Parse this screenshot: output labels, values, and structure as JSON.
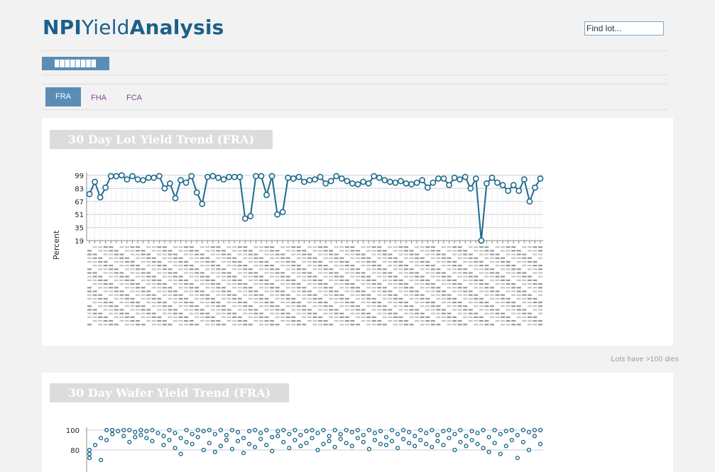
{
  "header": {
    "brand_part1": "NPI",
    "brand_part2": "Yield",
    "brand_part3": "Analysis",
    "search_placeholder": "Find lot..."
  },
  "user_badge": "████████",
  "tabs": [
    {
      "label": "FRA",
      "active": true
    },
    {
      "label": "FHA",
      "active": false
    },
    {
      "label": "FCA",
      "active": false
    }
  ],
  "lot_panel": {
    "title": "30 Day Lot Yield Trend (FRA)",
    "chart_data": {
      "type": "line",
      "title": "30 Day Lot Yield Trend (FRA)",
      "ylabel": "Percent",
      "yticks": [
        99,
        83,
        67,
        51,
        35,
        19
      ],
      "ylim": [
        19,
        99
      ],
      "grid": true,
      "color": "#1e6a8c",
      "values": [
        76,
        91,
        72,
        84,
        98,
        98,
        99,
        94,
        98,
        94,
        93,
        96,
        96,
        98,
        83,
        89,
        71,
        93,
        90,
        98,
        78,
        64,
        97,
        98,
        96,
        94,
        97,
        97,
        97,
        46,
        49,
        98,
        98,
        75,
        98,
        51,
        54,
        96,
        95,
        97,
        91,
        93,
        94,
        97,
        89,
        92,
        98,
        95,
        92,
        89,
        88,
        91,
        89,
        98,
        96,
        93,
        91,
        90,
        92,
        89,
        88,
        90,
        93,
        84,
        90,
        95,
        95,
        87,
        96,
        94,
        97,
        83,
        95,
        19,
        89,
        96,
        90,
        87,
        80,
        87,
        80,
        94,
        67,
        84,
        95
      ]
    },
    "x_labels_note": "",
    "footnote": "Lots have >100 dies"
  },
  "wafer_panel": {
    "title": "30 Day Wafer Yield Trend (FRA)",
    "chart_data": {
      "type": "scatter",
      "title": "30 Day Wafer Yield Trend (FRA)",
      "yticks": [
        100,
        80
      ],
      "ylim": [
        60,
        100
      ],
      "grid": true,
      "color": "#1e6a8c",
      "series": [
        {
          "x": [
            1,
            1,
            1,
            2,
            3,
            3,
            4,
            4,
            5,
            5,
            6,
            7,
            7,
            8,
            8,
            9,
            9,
            10,
            10,
            11,
            11,
            12,
            12,
            13,
            14,
            14,
            15,
            15,
            16,
            16,
            17,
            17,
            18,
            18,
            19,
            19,
            20,
            20,
            21,
            21,
            22,
            22,
            23,
            23,
            24,
            24,
            25,
            25,
            26,
            26,
            27,
            27,
            28,
            28,
            29,
            29,
            30,
            30,
            31,
            31,
            32,
            32,
            33,
            33,
            34,
            34,
            35,
            35,
            36,
            36,
            37,
            37,
            38,
            38,
            39,
            39,
            40,
            40,
            41,
            41,
            42,
            42,
            43,
            43,
            44,
            44,
            45,
            45,
            46,
            46,
            47,
            47,
            48,
            48,
            49,
            49,
            50,
            50,
            51,
            51,
            52,
            52,
            53,
            53,
            54,
            54,
            55,
            55,
            56,
            56,
            57,
            57,
            58,
            58,
            59,
            59,
            60,
            60,
            61,
            61,
            62,
            62,
            63,
            63,
            64,
            64,
            65,
            65,
            66,
            66,
            67,
            67,
            68,
            68,
            69,
            69,
            70,
            70,
            71,
            71,
            72,
            72,
            73,
            73,
            74,
            74,
            75,
            75,
            76,
            76,
            77,
            77,
            78,
            78,
            79,
            79,
            80,
            80
          ],
          "y": [
            80,
            76,
            72,
            85,
            70,
            92,
            100,
            90,
            100,
            96,
            99,
            100,
            94,
            100,
            88,
            98,
            93,
            100,
            95,
            99,
            92,
            100,
            89,
            97,
            94,
            85,
            100,
            90,
            97,
            82,
            92,
            76,
            100,
            88,
            96,
            86,
            100,
            93,
            99,
            80,
            100,
            87,
            96,
            78,
            100,
            84,
            95,
            90,
            100,
            81,
            98,
            89,
            92,
            77,
            99,
            86,
            100,
            83,
            97,
            91,
            100,
            85,
            93,
            79,
            99,
            94,
            100,
            88,
            96,
            82,
            100,
            90,
            95,
            84,
            99,
            87,
            100,
            92,
            97,
            80,
            100,
            86,
            94,
            89,
            100,
            83,
            96,
            91,
            100,
            87,
            98,
            84,
            100,
            92,
            95,
            88,
            100,
            81,
            97,
            90,
            99,
            86,
            93,
            85,
            100,
            89,
            96,
            82,
            100,
            91,
            98,
            87,
            94,
            84,
            100,
            90,
            97,
            86,
            100,
            83,
            95,
            89,
            99,
            85,
            100,
            92,
            96,
            80,
            100,
            88,
            94,
            84,
            99,
            90,
            97,
            86,
            100,
            82,
            93,
            78,
            100,
            87,
            96,
            76,
            99,
            84,
            100,
            90,
            95,
            72,
            100,
            88,
            98,
            80,
            100,
            94,
            100,
            86
          ]
        }
      ]
    }
  }
}
